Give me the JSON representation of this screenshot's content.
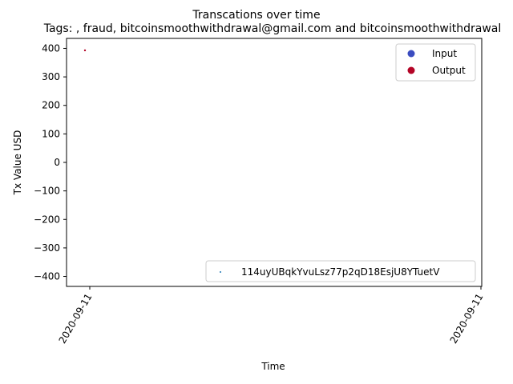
{
  "chart_data": {
    "type": "scatter",
    "title": "Transcations over time",
    "subtitle": "Tags: , fraud, bitcoinsmoothwithdrawal@gmail.com and bitcoinsmoothwithdrawal",
    "xlabel": "Time",
    "ylabel": "Tx Value USD",
    "x_tick_labels": [
      "2020-09-11",
      "2020-09-11"
    ],
    "ylim": [
      -435,
      435
    ],
    "y_ticks": [
      400,
      300,
      200,
      100,
      0,
      -100,
      -200,
      -300,
      -400
    ],
    "y_tick_labels": [
      "400",
      "300",
      "200",
      "100",
      "0",
      "−100",
      "−200",
      "−300",
      "−400"
    ],
    "series": [
      {
        "name": "Input",
        "color": "#3b4cc0",
        "values": []
      },
      {
        "name": "Output",
        "color": "#b40426",
        "points": [
          {
            "x": "2020-09-11",
            "y": 393
          }
        ]
      }
    ],
    "legend_top": {
      "position": "top-right",
      "entries": [
        {
          "label": "Input",
          "color": "#3b4cc0"
        },
        {
          "label": "Output",
          "color": "#b40426"
        }
      ]
    },
    "legend_bottom": {
      "position": "bottom-right",
      "entries": [
        {
          "label": "114uyUBqkYvuLsz77p2qD18EsjU8YTuetV",
          "color": "#1f77b4"
        }
      ]
    },
    "grid": false
  }
}
